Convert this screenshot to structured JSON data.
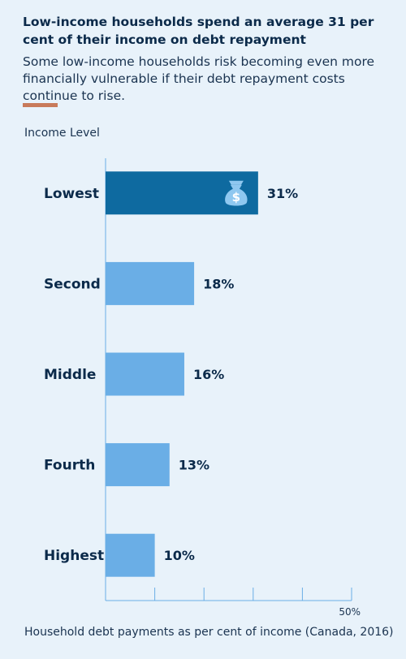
{
  "header": {
    "title": "Low-income households spend an average 31 per cent of their income on debt repayment",
    "subtitle": "Some low-income households risk becoming even more financially vulnerable if their debt repayment costs continue to rise."
  },
  "colors": {
    "background": "#e8f2fa",
    "highlight_bar": "#0e6aa0",
    "bar": "#6aaee6",
    "accent_rule": "#c87a5a",
    "axis": "#6aaee6",
    "text": "#0b2a4a"
  },
  "chart_data": {
    "type": "bar",
    "orientation": "horizontal",
    "title": "Low-income households spend an average 31 per cent of their income on debt repayment",
    "subtitle": "Some low-income households risk becoming even more financially vulnerable if their debt repayment costs continue to rise.",
    "ylabel": "Income Level",
    "xlabel": "Household debt payments as per cent of income (Canada, 2016)",
    "categories": [
      "Lowest",
      "Second",
      "Middle",
      "Fourth",
      "Highest"
    ],
    "values": [
      31,
      18,
      16,
      13,
      10
    ],
    "value_labels": [
      "31%",
      "18%",
      "16%",
      "13%",
      "10%"
    ],
    "highlight_category": "Lowest",
    "highlight_icon": "money-bag-dollar-icon",
    "xlim": [
      0,
      50
    ],
    "ticks": [
      0,
      10,
      20,
      30,
      40,
      50
    ],
    "tick_labels": [
      "",
      "",
      "",
      "",
      "",
      "50%"
    ],
    "grid": false
  }
}
